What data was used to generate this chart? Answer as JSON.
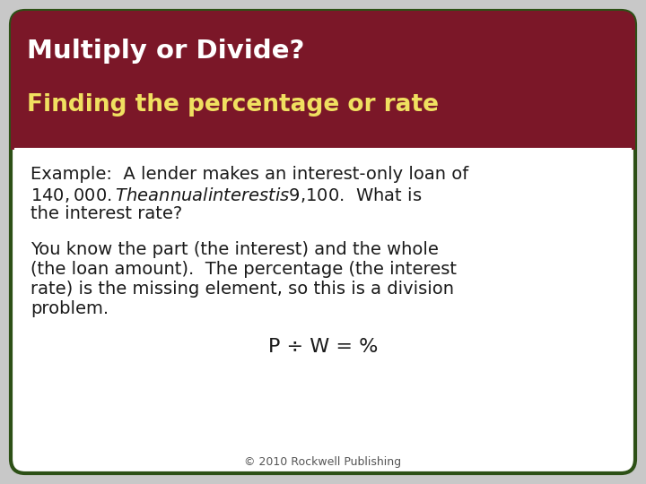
{
  "title_line1": "Multiply or Divide?",
  "title_line2": "Finding the percentage or rate",
  "title_bg_color": "#7B1728",
  "title_line1_color": "#FFFFFF",
  "title_line2_color": "#F0E060",
  "body_bg_color": "#FFFFFF",
  "border_color": "#2D5016",
  "slide_bg_color": "#C8C8C8",
  "para1_lines": [
    "Example:  A lender makes an interest-only loan of",
    "$140,000.  The annual interest is $9,100.  What is",
    "the interest rate?"
  ],
  "para2_lines": [
    "You know the part (the interest) and the whole",
    "(the loan amount).  The percentage (the interest",
    "rate) is the missing element, so this is a division",
    "problem."
  ],
  "formula": "P ÷ W = %",
  "footer": "© 2010 Rockwell Publishing",
  "body_text_color": "#1A1A1A",
  "footer_color": "#555555",
  "title_fontsize": 21,
  "subtitle_fontsize": 19,
  "body_fontsize": 14,
  "formula_fontsize": 16,
  "footer_fontsize": 9
}
